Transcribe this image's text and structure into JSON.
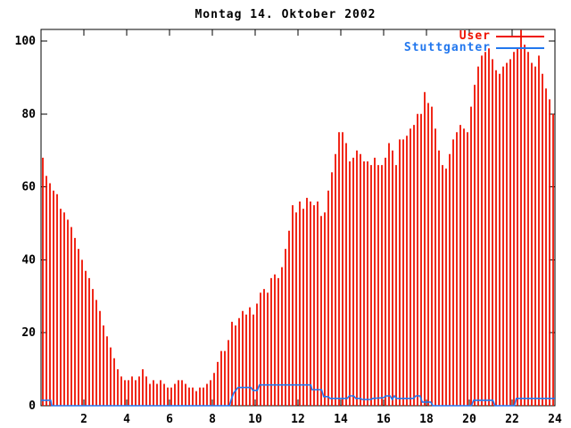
{
  "chart_data": {
    "type": "bar",
    "title": "Montag 14. Oktober 2002",
    "xlabel": "",
    "ylabel": "",
    "x": {
      "min": 0,
      "max": 24,
      "ticks": [
        2,
        4,
        6,
        8,
        10,
        12,
        14,
        16,
        18,
        20,
        22,
        24
      ]
    },
    "y": {
      "min": 0,
      "max": 100,
      "ticks": [
        0,
        20,
        40,
        60,
        80,
        100
      ]
    },
    "grid": false,
    "legend_position": "top-right",
    "background_color": "#ffffff",
    "axis_color": "#000000",
    "series": [
      {
        "name": "User",
        "type": "impulses",
        "color": "#ee1100",
        "interval_minutes": 10,
        "values": [
          68,
          63,
          61,
          59,
          58,
          54,
          53,
          51,
          49,
          46,
          43,
          40,
          37,
          35,
          32,
          29,
          26,
          22,
          19,
          16,
          13,
          10,
          8,
          7,
          7,
          8,
          7,
          8,
          10,
          8,
          6,
          7,
          6,
          7,
          6,
          5,
          5,
          6,
          7,
          7,
          6,
          5,
          5,
          4,
          5,
          5,
          6,
          7,
          9,
          12,
          15,
          15,
          18,
          23,
          22,
          24,
          26,
          25,
          27,
          25,
          28,
          31,
          32,
          31,
          35,
          36,
          35,
          38,
          43,
          48,
          55,
          53,
          56,
          54,
          57,
          56,
          55,
          56,
          52,
          53,
          59,
          64,
          69,
          75,
          75,
          72,
          67,
          68,
          70,
          69,
          67,
          67,
          66,
          68,
          66,
          66,
          68,
          72,
          70,
          66,
          73,
          73,
          74,
          76,
          77,
          80,
          80,
          86,
          83,
          82,
          76,
          70,
          66,
          65,
          69,
          73,
          75,
          77,
          76,
          75,
          82,
          88,
          93,
          96,
          97,
          98,
          95,
          92,
          91,
          93,
          94,
          95,
          97,
          98,
          103,
          99,
          97,
          94,
          93,
          96,
          91,
          87,
          84,
          80
        ]
      },
      {
        "name": "Stuttganter",
        "type": "line",
        "color": "#2277ee",
        "points": [
          [
            0,
            1.5
          ],
          [
            0.45,
            1.5
          ],
          [
            0.5,
            0
          ],
          [
            8.8,
            0
          ],
          [
            8.9,
            2
          ],
          [
            9.0,
            3.5
          ],
          [
            9.2,
            5
          ],
          [
            9.8,
            5
          ],
          [
            9.9,
            4.2
          ],
          [
            10.1,
            4.2
          ],
          [
            10.2,
            5.7
          ],
          [
            12.6,
            5.7
          ],
          [
            12.65,
            4.4
          ],
          [
            13.1,
            4.4
          ],
          [
            13.2,
            2.5
          ],
          [
            13.4,
            2.5
          ],
          [
            13.5,
            2
          ],
          [
            14.3,
            2
          ],
          [
            14.4,
            2.7
          ],
          [
            14.6,
            2.7
          ],
          [
            14.7,
            2
          ],
          [
            14.9,
            2
          ],
          [
            15.0,
            1.7
          ],
          [
            15.4,
            1.7
          ],
          [
            15.5,
            2
          ],
          [
            16.0,
            2.2
          ],
          [
            16.1,
            2.7
          ],
          [
            16.3,
            2.7
          ],
          [
            16.4,
            1.7
          ],
          [
            16.5,
            2.7
          ],
          [
            16.6,
            2
          ],
          [
            17.4,
            2
          ],
          [
            17.5,
            2.7
          ],
          [
            17.7,
            2.7
          ],
          [
            17.8,
            1
          ],
          [
            18.2,
            1
          ],
          [
            18.3,
            0
          ],
          [
            20.1,
            0
          ],
          [
            20.2,
            1.5
          ],
          [
            21.1,
            1.5
          ],
          [
            21.2,
            0
          ],
          [
            22.1,
            0
          ],
          [
            22.2,
            2
          ],
          [
            24,
            2
          ]
        ]
      }
    ]
  }
}
